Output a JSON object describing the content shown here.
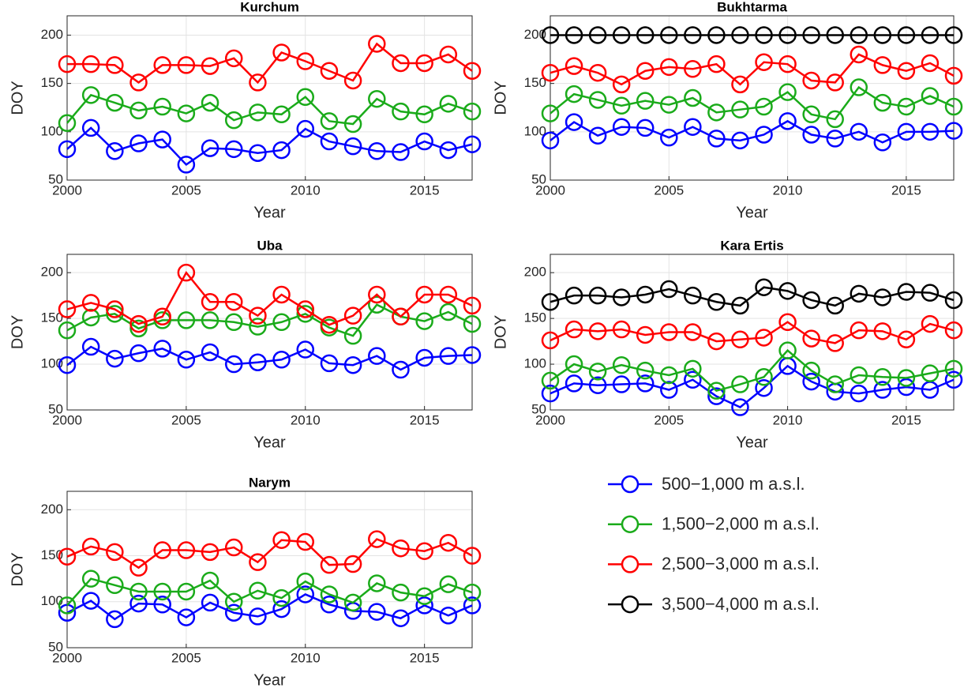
{
  "chart_data": [
    {
      "type": "line",
      "title": "Kurchum",
      "xlabel": "Year",
      "ylabel": "DOY",
      "x": [
        2000,
        2001,
        2002,
        2003,
        2004,
        2005,
        2006,
        2007,
        2008,
        2009,
        2010,
        2011,
        2012,
        2013,
        2014,
        2015,
        2016,
        2017
      ],
      "xlim": [
        2000,
        2017
      ],
      "xticks": [
        2000,
        2005,
        2010,
        2015
      ],
      "ylim": [
        50,
        220
      ],
      "yticks": [
        50,
        100,
        150,
        200
      ],
      "grid": true,
      "series": [
        {
          "color": "#0000ff",
          "values": [
            82,
            104,
            80,
            88,
            92,
            66,
            83,
            82,
            78,
            81,
            103,
            90,
            85,
            80,
            79,
            90,
            81,
            87
          ]
        },
        {
          "color": "#1aab1a",
          "values": [
            109,
            138,
            130,
            122,
            126,
            119,
            130,
            112,
            120,
            118,
            136,
            111,
            108,
            134,
            121,
            118,
            129,
            121
          ]
        },
        {
          "color": "#ff0000",
          "values": [
            170,
            170,
            169,
            151,
            169,
            169,
            168,
            176,
            151,
            182,
            173,
            163,
            153,
            191,
            171,
            171,
            180,
            163
          ]
        }
      ]
    },
    {
      "type": "line",
      "title": "Bukhtarma",
      "xlabel": "Year",
      "ylabel": "DOY",
      "x": [
        2000,
        2001,
        2002,
        2003,
        2004,
        2005,
        2006,
        2007,
        2008,
        2009,
        2010,
        2011,
        2012,
        2013,
        2014,
        2015,
        2016,
        2017
      ],
      "xlim": [
        2000,
        2017
      ],
      "xticks": [
        2000,
        2005,
        2010,
        2015
      ],
      "ylim": [
        50,
        220
      ],
      "yticks": [
        50,
        100,
        150,
        200
      ],
      "grid": true,
      "series": [
        {
          "name": "500−1,000 m a.s.l.",
          "color": "#0000ff",
          "values": [
            91,
            110,
            96,
            105,
            104,
            94,
            105,
            93,
            91,
            97,
            111,
            97,
            93,
            100,
            89,
            100,
            100,
            101
          ]
        },
        {
          "name": "1,500−2,000 m a.s.l.",
          "color": "#1aab1a",
          "values": [
            119,
            139,
            133,
            127,
            132,
            128,
            135,
            120,
            123,
            126,
            141,
            118,
            113,
            146,
            130,
            126,
            137,
            126
          ]
        },
        {
          "name": "2,500−3,000 m a.s.l.",
          "color": "#ff0000",
          "values": [
            161,
            168,
            161,
            149,
            163,
            167,
            165,
            170,
            149,
            172,
            170,
            153,
            151,
            180,
            169,
            163,
            171,
            158
          ]
        },
        {
          "name": "3,500−4,000 m a.s.l.",
          "color": "#000000",
          "values": [
            200,
            200,
            200,
            200,
            200,
            200,
            200,
            200,
            200,
            200,
            200,
            200,
            200,
            200,
            200,
            200,
            200,
            200
          ]
        }
      ]
    },
    {
      "type": "line",
      "title": "Uba",
      "xlabel": "Year",
      "ylabel": "DOY",
      "x": [
        2000,
        2001,
        2002,
        2003,
        2004,
        2005,
        2006,
        2007,
        2008,
        2009,
        2010,
        2011,
        2012,
        2013,
        2014,
        2015,
        2016,
        2017
      ],
      "xlim": [
        2000,
        2017
      ],
      "xticks": [
        2000,
        2005,
        2010,
        2015
      ],
      "ylim": [
        50,
        220
      ],
      "yticks": [
        50,
        100,
        150,
        200
      ],
      "grid": true,
      "series": [
        {
          "color": "#0000ff",
          "values": [
            99,
            119,
            106,
            112,
            117,
            105,
            113,
            100,
            102,
            105,
            116,
            101,
            99,
            109,
            94,
            107,
            109,
            110
          ]
        },
        {
          "color": "#1aab1a",
          "values": [
            137,
            151,
            155,
            139,
            148,
            148,
            148,
            146,
            141,
            146,
            155,
            140,
            131,
            165,
            152,
            147,
            157,
            144
          ]
        },
        {
          "color": "#ff0000",
          "values": [
            160,
            167,
            160,
            144,
            152,
            200,
            168,
            168,
            153,
            176,
            160,
            143,
            153,
            176,
            152,
            176,
            176,
            164
          ]
        }
      ]
    },
    {
      "type": "line",
      "title": "Kara Ertis",
      "xlabel": "Year",
      "ylabel": "DOY",
      "x": [
        2000,
        2001,
        2002,
        2003,
        2004,
        2005,
        2006,
        2007,
        2008,
        2009,
        2010,
        2011,
        2012,
        2013,
        2014,
        2015,
        2016,
        2017
      ],
      "xlim": [
        2000,
        2017
      ],
      "xticks": [
        2000,
        2005,
        2010,
        2015
      ],
      "ylim": [
        50,
        220
      ],
      "yticks": [
        50,
        100,
        150,
        200
      ],
      "grid": true,
      "series": [
        {
          "color": "#0000ff",
          "values": [
            68,
            79,
            77,
            78,
            79,
            72,
            83,
            65,
            53,
            74,
            98,
            81,
            70,
            68,
            72,
            75,
            72,
            83
          ]
        },
        {
          "color": "#1aab1a",
          "values": [
            82,
            100,
            92,
            99,
            93,
            88,
            95,
            71,
            78,
            86,
            115,
            93,
            78,
            88,
            86,
            85,
            90,
            95
          ]
        },
        {
          "color": "#ff0000",
          "values": [
            126,
            138,
            136,
            138,
            132,
            135,
            135,
            125,
            127,
            129,
            146,
            128,
            123,
            137,
            136,
            127,
            144,
            137
          ]
        },
        {
          "color": "#000000",
          "values": [
            168,
            175,
            175,
            173,
            176,
            182,
            175,
            168,
            164,
            184,
            180,
            170,
            164,
            177,
            173,
            179,
            178,
            170
          ]
        }
      ]
    },
    {
      "type": "line",
      "title": "Narym",
      "xlabel": "Year",
      "ylabel": "DOY",
      "x": [
        2000,
        2001,
        2002,
        2003,
        2004,
        2005,
        2006,
        2007,
        2008,
        2009,
        2010,
        2011,
        2012,
        2013,
        2014,
        2015,
        2016,
        2017
      ],
      "xlim": [
        2000,
        2017
      ],
      "xticks": [
        2000,
        2005,
        2010,
        2015
      ],
      "ylim": [
        50,
        220
      ],
      "yticks": [
        50,
        100,
        150,
        200
      ],
      "grid": true,
      "series": [
        {
          "color": "#0000ff",
          "values": [
            88,
            101,
            81,
            98,
            97,
            83,
            99,
            88,
            84,
            92,
            108,
            97,
            90,
            89,
            82,
            96,
            85,
            96
          ]
        },
        {
          "color": "#1aab1a",
          "values": [
            96,
            125,
            118,
            111,
            111,
            111,
            123,
            100,
            112,
            104,
            122,
            108,
            99,
            120,
            110,
            106,
            119,
            110
          ]
        },
        {
          "color": "#ff0000",
          "values": [
            149,
            160,
            154,
            137,
            156,
            156,
            154,
            159,
            143,
            167,
            165,
            140,
            141,
            168,
            158,
            155,
            164,
            150
          ]
        }
      ]
    }
  ]
}
